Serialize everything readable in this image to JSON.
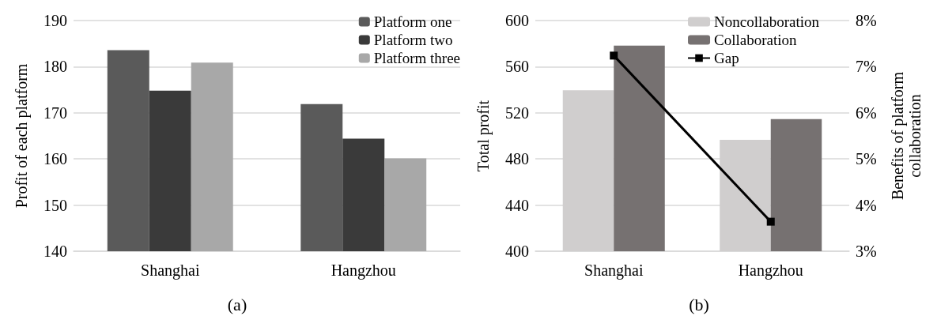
{
  "chart_data": [
    {
      "type": "bar",
      "categories": [
        "Shanghai",
        "Hangzhou"
      ],
      "ylabel": "Profit of each platform",
      "ylim": [
        140,
        190
      ],
      "yticks": [
        140,
        150,
        160,
        170,
        180,
        190
      ],
      "grid": "y",
      "legend": "top right",
      "annotations": [
        "(a)"
      ],
      "series": [
        {
          "name": "Platform one",
          "color": "#5a5a5a",
          "values": [
            183.6,
            171.9
          ]
        },
        {
          "name": "Platform two",
          "color": "#3a3a3a",
          "values": [
            174.8,
            164.4
          ]
        },
        {
          "name": "Platform three",
          "color": "#a8a8a8",
          "values": [
            180.9,
            160.1
          ]
        }
      ]
    },
    {
      "type": "bar",
      "categories": [
        "Shanghai",
        "Hangzhou"
      ],
      "ylabel": "Total profit",
      "y2label": "Benefits of platform\ncollaboration",
      "ylim": [
        400,
        600
      ],
      "yticks": [
        400,
        440,
        480,
        520,
        560,
        600
      ],
      "y2lim": [
        3,
        8
      ],
      "y2ticks": [
        {
          "value": 3,
          "label": "3%"
        },
        {
          "value": 4,
          "label": "4%"
        },
        {
          "value": 5,
          "label": "5%"
        },
        {
          "value": 6,
          "label": "6%"
        },
        {
          "value": 7,
          "label": "7%"
        },
        {
          "value": 8,
          "label": "8%"
        }
      ],
      "grid": "y",
      "legend": "top right",
      "annotations": [
        "(b)"
      ],
      "series": [
        {
          "name": "Noncollaboration",
          "color": "#d0cece",
          "values": [
            539.6,
            496.6
          ]
        },
        {
          "name": "Collaboration",
          "color": "#767171",
          "values": [
            578.3,
            514.6
          ]
        },
        {
          "name": "Gap",
          "type": "line",
          "axis": "y2",
          "color": "#000000",
          "marker": "square",
          "values": [
            7.24,
            3.64
          ]
        }
      ]
    }
  ]
}
